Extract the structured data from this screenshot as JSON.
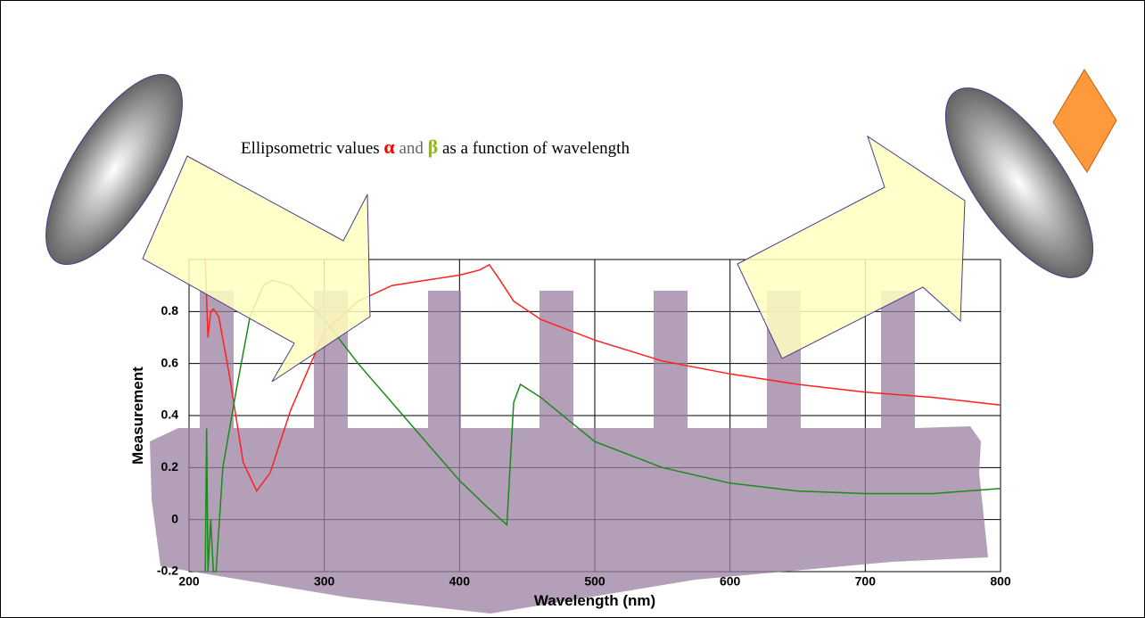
{
  "chart_data": {
    "type": "line",
    "title": {
      "prefix": "Ellipsometric values ",
      "alpha": "α",
      "middle": " and ",
      "beta": "β",
      "suffix": "  as a function of wavelength"
    },
    "x_label": "Wavelength (nm)",
    "y_label": "Measurement",
    "xlim": [
      200,
      800
    ],
    "xticks": [
      200,
      300,
      400,
      500,
      600,
      700,
      800
    ],
    "ylim": [
      -0.2,
      1.0
    ],
    "yticks": [
      -0.2,
      0,
      0.2,
      0.4,
      0.6,
      0.8
    ],
    "grid": true,
    "series": [
      {
        "color": "#ff2020",
        "x": [
          212,
          214,
          216,
          218,
          222,
          230,
          240,
          250,
          260,
          275,
          300,
          325,
          350,
          375,
          400,
          415,
          422,
          430,
          440,
          460,
          500,
          550,
          600,
          650,
          700,
          750,
          800
        ],
        "values": [
          1.0,
          0.7,
          0.8,
          0.81,
          0.78,
          0.55,
          0.22,
          0.11,
          0.18,
          0.42,
          0.72,
          0.84,
          0.9,
          0.92,
          0.94,
          0.96,
          0.98,
          0.92,
          0.84,
          0.77,
          0.69,
          0.61,
          0.56,
          0.52,
          0.49,
          0.47,
          0.44
        ]
      },
      {
        "color": "#1a8a1a",
        "x": [
          212,
          213,
          214,
          216,
          218,
          220,
          225,
          235,
          245,
          255,
          262,
          275,
          300,
          325,
          350,
          375,
          400,
          420,
          435,
          440,
          445,
          460,
          500,
          550,
          600,
          650,
          700,
          750,
          800
        ],
        "values": [
          -0.2,
          0.35,
          -0.2,
          0.0,
          -0.2,
          -0.2,
          0.2,
          0.5,
          0.78,
          0.9,
          0.92,
          0.9,
          0.77,
          0.6,
          0.45,
          0.3,
          0.15,
          0.05,
          -0.02,
          0.45,
          0.52,
          0.47,
          0.3,
          0.2,
          0.14,
          0.11,
          0.1,
          0.1,
          0.12
        ]
      }
    ]
  }
}
